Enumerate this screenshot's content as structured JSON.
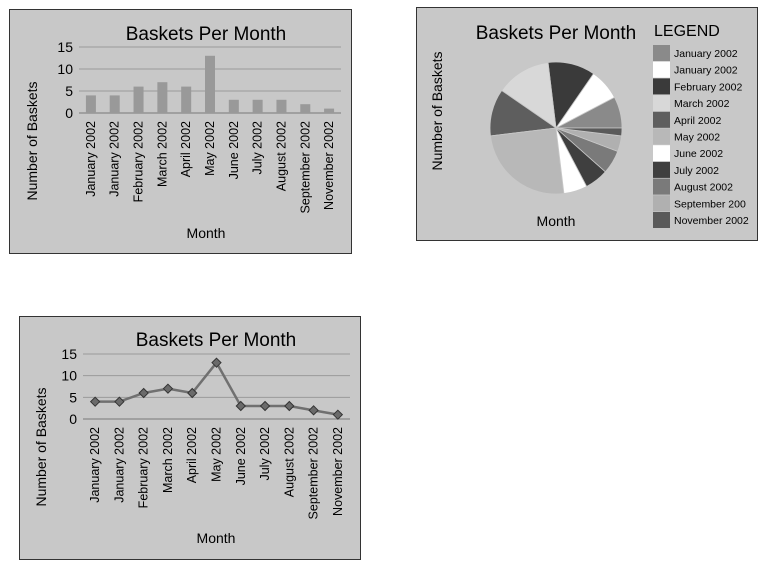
{
  "chart_data": [
    {
      "type": "bar",
      "title": "Baskets Per Month",
      "xlabel": "Month",
      "ylabel": "Number of Baskets",
      "categories": [
        "January 2002",
        "January 2002",
        "February 2002",
        "March 2002",
        "April 2002",
        "May 2002",
        "June 2002",
        "July 2002",
        "August 2002",
        "September 2002",
        "November 2002"
      ],
      "values": [
        4,
        4,
        6,
        7,
        6,
        13,
        3,
        3,
        3,
        2,
        1
      ],
      "ylim": [
        0,
        15
      ],
      "yticks": [
        0,
        5,
        10,
        15
      ],
      "grid": true,
      "bar_color": "#999999"
    },
    {
      "type": "pie",
      "title": "Baskets Per Month",
      "ylabel": "Number of Baskets",
      "xlabel": "Month",
      "legend_title": "LEGEND",
      "legend_position": "right",
      "categories": [
        "January 2002",
        "January 2002",
        "February 2002",
        "March 2002",
        "April 2002",
        "May 2002",
        "June 2002",
        "July 2002",
        "August 2002",
        "September 200",
        "November 2002"
      ],
      "values": [
        4,
        4,
        6,
        7,
        6,
        13,
        3,
        3,
        3,
        2,
        1
      ],
      "colors": [
        "#8a8a8a",
        "#ffffff",
        "#3a3a3a",
        "#d8d8d8",
        "#5e5e5e",
        "#b8b8b8",
        "#ffffff",
        "#3f3f3f",
        "#7a7a7a",
        "#b0b0b0",
        "#5a5a5a"
      ]
    },
    {
      "type": "line",
      "title": "Baskets Per Month",
      "xlabel": "Month",
      "ylabel": "Number of Baskets",
      "categories": [
        "January 2002",
        "January 2002",
        "February 2002",
        "March 2002",
        "April 2002",
        "May 2002",
        "June 2002",
        "July 2002",
        "August 2002",
        "September 2002",
        "November 2002"
      ],
      "values": [
        4,
        4,
        6,
        7,
        6,
        13,
        3,
        3,
        3,
        2,
        1
      ],
      "ylim": [
        0,
        15
      ],
      "yticks": [
        0,
        5,
        10,
        15
      ],
      "grid": true,
      "line_color": "#707070",
      "marker": "diamond"
    }
  ]
}
